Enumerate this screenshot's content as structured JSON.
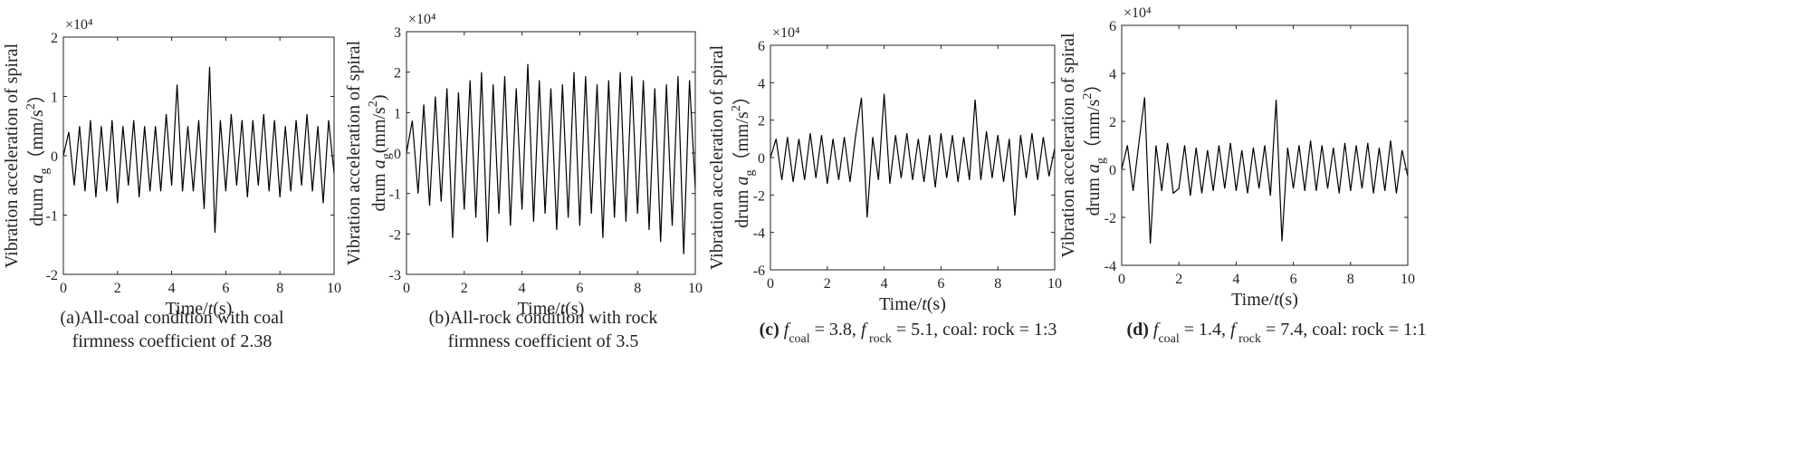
{
  "chart_data": [
    {
      "type": "line",
      "color": "#000000",
      "ylabel": [
        [
          {
            "text": "Vibration acceleration of spiral"
          }
        ],
        [
          {
            "text": "drum "
          },
          {
            "text": "a",
            "style": "italic"
          },
          {
            "text": "g",
            "style": "sub"
          },
          {
            "text": "（mm/s"
          },
          {
            "text": "2",
            "style": "sup"
          },
          {
            "text": "）"
          }
        ]
      ],
      "xlabel": [
        {
          "text": "Time/"
        },
        {
          "text": "t",
          "style": "italic"
        },
        {
          "text": "(s)"
        }
      ],
      "axis_multiplier": "×10⁴",
      "caption": [
        [
          {
            "text": "(a)All-coal condition with coal"
          }
        ],
        [
          {
            "text": "firmness coefficient of 2.38"
          }
        ]
      ],
      "xlim": [
        0,
        10
      ],
      "xticks": [
        0,
        2,
        4,
        6,
        8,
        10
      ],
      "ylim": [
        -2,
        2
      ],
      "yticks": [
        -2,
        -1,
        0,
        1,
        2
      ],
      "x": [
        0,
        0.2,
        0.4,
        0.6,
        0.8,
        1,
        1.2,
        1.4,
        1.6,
        1.8,
        2,
        2.2,
        2.4,
        2.6,
        2.8,
        3,
        3.2,
        3.4,
        3.6,
        3.8,
        4,
        4.2,
        4.4,
        4.6,
        4.8,
        5,
        5.2,
        5.4,
        5.6,
        5.8,
        6,
        6.2,
        6.4,
        6.6,
        6.8,
        7,
        7.2,
        7.4,
        7.6,
        7.8,
        8,
        8.2,
        8.4,
        8.6,
        8.8,
        9,
        9.2,
        9.4,
        9.6,
        9.8,
        10
      ],
      "values": [
        0,
        0.4,
        -0.5,
        0.5,
        -0.6,
        0.6,
        -0.7,
        0.5,
        -0.6,
        0.6,
        -0.8,
        0.5,
        -0.5,
        0.6,
        -0.7,
        0.5,
        -0.6,
        0.5,
        -0.6,
        0.7,
        -0.5,
        1.2,
        -0.6,
        0.5,
        -0.6,
        0.6,
        -0.9,
        1.5,
        -1.3,
        0.6,
        -0.6,
        0.7,
        -0.5,
        0.6,
        -0.7,
        0.6,
        -0.5,
        0.7,
        -0.6,
        0.6,
        -0.7,
        0.5,
        -0.6,
        0.6,
        -0.5,
        0.7,
        -0.6,
        0.5,
        -0.8,
        0.6,
        -0.3
      ]
    },
    {
      "type": "line",
      "color": "#000000",
      "ylabel": [
        [
          {
            "text": "Vibration acceleration of spiral"
          }
        ],
        [
          {
            "text": "drum "
          },
          {
            "text": "a",
            "style": "italic"
          },
          {
            "text": "g",
            "style": "sub"
          },
          {
            "text": "(mm/s"
          },
          {
            "text": "2",
            "style": "sup"
          },
          {
            "text": ")"
          }
        ]
      ],
      "xlabel": [
        {
          "text": "Time/"
        },
        {
          "text": "t",
          "style": "italic"
        },
        {
          "text": "(s)"
        }
      ],
      "axis_multiplier": "×10⁴",
      "caption": [
        [
          {
            "text": "(b)All-rock condition with rock"
          }
        ],
        [
          {
            "text": "firmness coefficient of 3.5"
          }
        ]
      ],
      "xlim": [
        0,
        10
      ],
      "xticks": [
        0,
        2,
        4,
        6,
        8,
        10
      ],
      "ylim": [
        -3,
        3
      ],
      "yticks": [
        -3,
        -2,
        -1,
        0,
        1,
        2,
        3
      ],
      "x": [
        0,
        0.2,
        0.4,
        0.6,
        0.8,
        1,
        1.2,
        1.4,
        1.6,
        1.8,
        2,
        2.2,
        2.4,
        2.6,
        2.8,
        3,
        3.2,
        3.4,
        3.6,
        3.8,
        4,
        4.2,
        4.4,
        4.6,
        4.8,
        5,
        5.2,
        5.4,
        5.6,
        5.8,
        6,
        6.2,
        6.4,
        6.6,
        6.8,
        7,
        7.2,
        7.4,
        7.6,
        7.8,
        8,
        8.2,
        8.4,
        8.6,
        8.8,
        9,
        9.2,
        9.4,
        9.6,
        9.8,
        10
      ],
      "values": [
        0,
        0.8,
        -1,
        1.2,
        -1.3,
        1.4,
        -1.2,
        1.6,
        -2.1,
        1.5,
        -1.4,
        1.8,
        -1.6,
        2,
        -2.2,
        1.7,
        -1.5,
        1.9,
        -1.8,
        1.6,
        -1.4,
        2.2,
        -1.7,
        1.8,
        -1.5,
        1.6,
        -1.9,
        1.7,
        -1.6,
        2,
        -1.8,
        1.9,
        -1.5,
        1.7,
        -2.1,
        1.8,
        -1.6,
        2,
        -1.7,
        1.9,
        -1.5,
        1.8,
        -1.9,
        1.6,
        -2.2,
        1.7,
        -1.8,
        1.9,
        -2.5,
        1.8,
        -0.9
      ]
    },
    {
      "type": "line",
      "color": "#000000",
      "ylabel": [
        [
          {
            "text": "Vibration acceleration of spiral"
          }
        ],
        [
          {
            "text": "drum "
          },
          {
            "text": "a",
            "style": "italic"
          },
          {
            "text": "g",
            "style": "sub"
          },
          {
            "text": "（mm/s"
          },
          {
            "text": "2",
            "style": "sup"
          },
          {
            "text": "）"
          }
        ]
      ],
      "xlabel": [
        {
          "text": "Time/"
        },
        {
          "text": "t",
          "style": "italic"
        },
        {
          "text": "(s)"
        }
      ],
      "axis_multiplier": "×10⁴",
      "caption": [
        [
          {
            "text": "(c)",
            "style": "bold"
          },
          {
            "text": "  "
          },
          {
            "text": "f",
            "style": "italic"
          },
          {
            "text": "coal",
            "style": "sub"
          },
          {
            "text": " = 3.8, "
          },
          {
            "text": "f",
            "style": "italic"
          },
          {
            "text": " rock",
            "style": "sub"
          },
          {
            "text": " = 5.1, coal: rock = 1:3"
          }
        ]
      ],
      "xlim": [
        0,
        10
      ],
      "xticks": [
        0,
        2,
        4,
        6,
        8,
        10
      ],
      "ylim": [
        -6,
        6
      ],
      "yticks": [
        -6,
        -4,
        -2,
        0,
        2,
        4,
        6
      ],
      "x": [
        0,
        0.2,
        0.4,
        0.6,
        0.8,
        1,
        1.2,
        1.4,
        1.6,
        1.8,
        2,
        2.2,
        2.4,
        2.6,
        2.8,
        3,
        3.2,
        3.4,
        3.6,
        3.8,
        4,
        4.2,
        4.4,
        4.6,
        4.8,
        5,
        5.2,
        5.4,
        5.6,
        5.8,
        6,
        6.2,
        6.4,
        6.6,
        6.8,
        7,
        7.2,
        7.4,
        7.6,
        7.8,
        8,
        8.2,
        8.4,
        8.6,
        8.8,
        9,
        9.2,
        9.4,
        9.6,
        9.8,
        10
      ],
      "values": [
        0,
        1,
        -1.2,
        1.1,
        -1.3,
        1,
        -1.2,
        1.3,
        -1.1,
        1.2,
        -1.4,
        1,
        -1.2,
        1.1,
        -1.3,
        1.2,
        3.2,
        -3.2,
        1.1,
        -1.2,
        3.4,
        -1.4,
        1.2,
        -1.1,
        1.3,
        -1.2,
        1,
        -1.3,
        1.2,
        -1.6,
        1.3,
        -1.1,
        1.2,
        -1.3,
        1.1,
        -1.2,
        3.1,
        -1.2,
        1.4,
        -1.1,
        1.2,
        -1.3,
        1,
        -3.1,
        1.2,
        -1.1,
        1.3,
        -1.2,
        1.1,
        -1,
        0.5
      ]
    },
    {
      "type": "line",
      "color": "#000000",
      "ylabel": [
        [
          {
            "text": "Vibration acceleration of spiral"
          }
        ],
        [
          {
            "text": "drum "
          },
          {
            "text": "a",
            "style": "italic"
          },
          {
            "text": "g",
            "style": "sub"
          },
          {
            "text": "（mm/s"
          },
          {
            "text": "2",
            "style": "sup"
          },
          {
            "text": "）"
          }
        ]
      ],
      "xlabel": [
        {
          "text": "Time/"
        },
        {
          "text": "t",
          "style": "italic"
        },
        {
          "text": "(s)"
        }
      ],
      "axis_multiplier": "×10⁴",
      "caption": [
        [
          {
            "text": "(d)",
            "style": "bold"
          },
          {
            "text": "  "
          },
          {
            "text": "f",
            "style": "italic"
          },
          {
            "text": "coal",
            "style": "sub"
          },
          {
            "text": " = 1.4, "
          },
          {
            "text": "f",
            "style": "italic"
          },
          {
            "text": " rock",
            "style": "sub"
          },
          {
            "text": " = 7.4, coal: rock = 1:1"
          }
        ]
      ],
      "xlim": [
        0,
        10
      ],
      "xticks": [
        0,
        2,
        4,
        6,
        8,
        10
      ],
      "ylim": [
        -4,
        6
      ],
      "yticks": [
        -4,
        -2,
        0,
        2,
        4,
        6
      ],
      "x": [
        0,
        0.2,
        0.4,
        0.6,
        0.8,
        1,
        1.2,
        1.4,
        1.6,
        1.8,
        2,
        2.2,
        2.4,
        2.6,
        2.8,
        3,
        3.2,
        3.4,
        3.6,
        3.8,
        4,
        4.2,
        4.4,
        4.6,
        4.8,
        5,
        5.2,
        5.4,
        5.6,
        5.8,
        6,
        6.2,
        6.4,
        6.6,
        6.8,
        7,
        7.2,
        7.4,
        7.6,
        7.8,
        8,
        8.2,
        8.4,
        8.6,
        8.8,
        9,
        9.2,
        9.4,
        9.6,
        9.8,
        10
      ],
      "values": [
        0,
        1,
        -0.9,
        1.1,
        3,
        -3.1,
        1,
        -0.9,
        1.1,
        -1,
        -0.8,
        1,
        -1.1,
        0.9,
        -1,
        0.8,
        -0.9,
        1,
        -0.8,
        1.1,
        -0.9,
        0.8,
        -1,
        0.9,
        -0.8,
        1,
        -1.1,
        2.9,
        -3,
        0.9,
        -0.8,
        1,
        -0.9,
        1.2,
        -0.9,
        1,
        -0.8,
        0.9,
        -1,
        1.1,
        -0.9,
        1,
        -0.8,
        1.1,
        -1,
        0.9,
        -0.9,
        1.2,
        -1,
        0.8,
        -0.3
      ]
    }
  ]
}
